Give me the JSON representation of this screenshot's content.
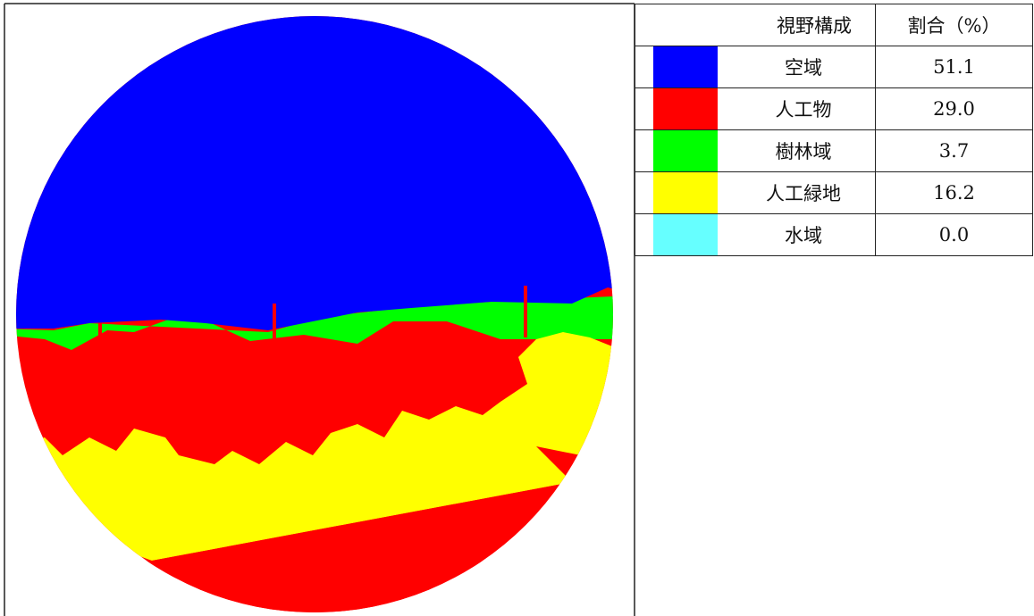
{
  "table": {
    "header": [
      "視野構成",
      "割合（%）"
    ],
    "rows": [
      {
        "label": "空域",
        "value": "51.1",
        "color": "#0000ff"
      },
      {
        "label": "人工物",
        "value": "29.0",
        "color": "#ff0000"
      },
      {
        "label": "樹林域",
        "value": "3.7",
        "color": "#00ff00"
      },
      {
        "label": "人工緑地",
        "value": "16.2",
        "color": "#ffff00"
      },
      {
        "label": "水域",
        "value": "0.0",
        "color": "#66ffff"
      }
    ]
  }
}
